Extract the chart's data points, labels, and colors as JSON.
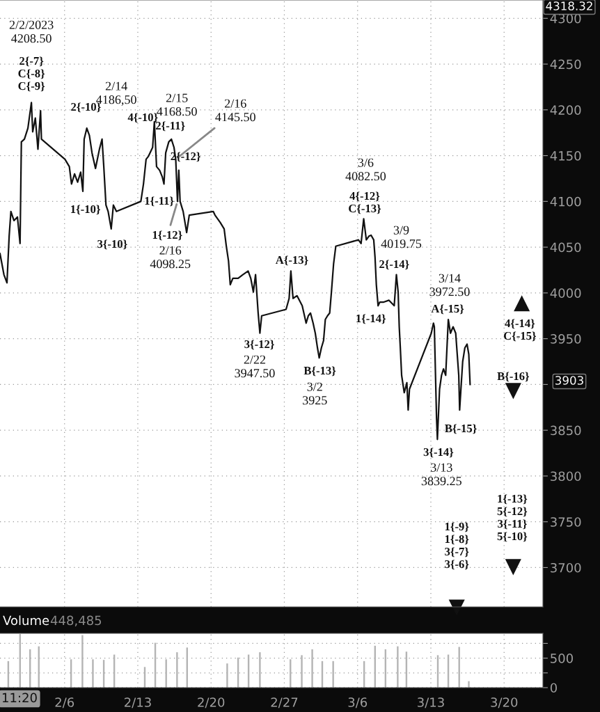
{
  "chart_data": [
    {
      "type": "line",
      "xlim": [
        "2023-01-30T20:00",
        "2023-03-23T17:00"
      ],
      "ylim": [
        3657,
        4320
      ],
      "xticks": [
        {
          "value": "2023-02-06",
          "label": null
        },
        {
          "value": "2023-02-13",
          "label": null
        },
        {
          "value": "2023-02-20",
          "label": null
        },
        {
          "value": "2023-02-27",
          "label": null
        },
        {
          "value": "2023-03-06",
          "label": null
        },
        {
          "value": "2023-03-13",
          "label": null
        },
        {
          "value": "2023-03-20",
          "label": null
        }
      ],
      "yticks": [
        3700,
        3750,
        3800,
        3850,
        {
          "value": 3900,
          "label": null
        },
        3950,
        4000,
        4050,
        4100,
        4150,
        4200,
        4250,
        4300
      ],
      "tick_labels": "y",
      "grid": true,
      "marker": "none",
      "line_style": "solid",
      "series": [
        {
          "color": "#111111",
          "x": [
            "2023-01-30T20:00",
            "2023-01-31T05:00",
            "2023-01-31T12:00",
            "2023-01-31T17:00",
            "2023-01-31T21:00",
            "2023-02-01T04:00",
            "2023-02-01T12:00",
            "2023-02-01T18:00",
            "2023-02-01T21:00",
            "2023-02-02T04:00",
            "2023-02-02T12:00",
            "2023-02-02T20:00",
            "2023-02-02T23:00",
            "2023-02-03T05:00",
            "2023-02-03T11:00",
            "2023-02-03T17:00",
            "2023-02-03T19:00",
            "2023-02-06T01:00",
            "2023-02-06T11:00",
            "2023-02-06T16:00",
            "2023-02-06T23:00",
            "2023-02-07T06:00",
            "2023-02-07T13:00",
            "2023-02-07T18:00",
            "2023-02-07T21:00",
            "2023-02-08T03:00",
            "2023-02-08T09:00",
            "2023-02-08T15:00",
            "2023-02-08T23:00",
            "2023-02-09T08:00",
            "2023-02-09T14:00",
            "2023-02-09T18:00",
            "2023-02-09T23:00",
            "2023-02-10T04:00",
            "2023-02-10T11:00",
            "2023-02-10T16:00",
            "2023-02-10T23:00",
            "2023-02-13T07:00",
            "2023-02-13T13:00",
            "2023-02-13T19:00",
            "2023-02-14T00:00",
            "2023-02-14T10:00",
            "2023-02-14T14:00",
            "2023-02-14T19:00",
            "2023-02-15T02:00",
            "2023-02-15T08:00",
            "2023-02-15T12:00",
            "2023-02-15T16:00",
            "2023-02-15T23:00",
            "2023-02-16T05:00",
            "2023-02-16T11:00",
            "2023-02-16T15:00",
            "2023-02-16T19:00",
            "2023-02-16T22:00",
            "2023-02-17T01:00",
            "2023-02-17T08:00",
            "2023-02-17T16:00",
            "2023-02-17T22:00",
            "2023-02-20T05:00",
            "2023-02-20T09:00",
            "2023-02-20T21:00",
            "2023-02-21T06:00",
            "2023-02-21T11:00",
            "2023-02-21T16:00",
            "2023-02-21T20:00",
            "2023-02-22T02:00",
            "2023-02-22T14:00",
            "2023-02-23T01:00",
            "2023-02-23T13:00",
            "2023-02-23T19:00",
            "2023-02-24T01:00",
            "2023-02-24T06:00",
            "2023-02-24T12:00",
            "2023-02-24T16:00",
            "2023-02-24T20:00",
            "2023-02-27T04:00",
            "2023-02-27T11:00",
            "2023-02-27T15:00",
            "2023-02-27T20:00",
            "2023-02-28T05:00",
            "2023-02-28T17:00",
            "2023-03-01T02:00",
            "2023-03-01T07:00",
            "2023-03-01T12:00",
            "2023-03-01T18:00",
            "2023-03-01T23:00",
            "2023-03-02T04:00",
            "2023-03-02T08:00",
            "2023-03-02T13:00",
            "2023-03-02T18:00",
            "2023-03-02T22:00",
            "2023-03-03T03:00",
            "2023-03-03T08:00",
            "2023-03-03T12:00",
            "2023-03-03T17:00",
            "2023-03-03T22:00",
            "2023-03-06T02:00",
            "2023-03-06T08:00",
            "2023-03-06T14:00",
            "2023-03-06T20:00",
            "2023-03-07T02:00",
            "2023-03-07T07:00",
            "2023-03-07T13:00",
            "2023-03-07T16:00",
            "2023-03-07T19:00",
            "2023-03-07T23:00",
            "2023-03-08T03:00",
            "2023-03-08T12:00",
            "2023-03-09T00:00",
            "2023-03-09T12:00",
            "2023-03-09T17:00",
            "2023-03-09T21:00",
            "2023-03-09T23:30",
            "2023-03-10T02:00",
            "2023-03-10T05:00",
            "2023-03-10T11:00",
            "2023-03-10T17:00",
            "2023-03-10T20:00",
            "2023-03-10T23:00",
            "2023-03-13T01:00",
            "2023-03-13T06:00",
            "2023-03-13T08:00",
            "2023-03-13T13:00",
            "2023-03-13T15:00",
            "2023-03-13T20:00",
            "2023-03-14T00:30",
            "2023-03-14T05:00",
            "2023-03-14T10:00",
            "2023-03-14T16:00",
            "2023-03-14T21:00",
            "2023-03-15T03:00",
            "2023-03-15T09:00",
            "2023-03-15T16:00",
            "2023-03-15T18:00",
            "2023-03-15T21:00",
            "2023-03-16T01:00",
            "2023-03-16T06:00",
            "2023-03-16T11:00",
            "2023-03-16T15:00",
            "2023-03-16T18:00"
          ],
          "values": [
            4043,
            4020,
            4011,
            4062,
            4089,
            4079,
            4083,
            4054,
            4165,
            4168,
            4180,
            4208,
            4176,
            4191,
            4157,
            4199,
            4168,
            4146,
            4138,
            4119,
            4130,
            4121,
            4132,
            4111,
            4168,
            4180,
            4172,
            4153,
            4136,
            4157,
            4168,
            4138,
            4096,
            4089,
            4070,
            4096,
            4089,
            4100,
            4119,
            4146,
            4149,
            4159,
            4187,
            4138,
            4134,
            4127,
            4119,
            4153,
            4165,
            4168,
            4159,
            4146,
            4100,
            4134,
            4100,
            4089,
            4066,
            4085,
            4089,
            4085,
            4077,
            4070,
            4051,
            4035,
            4009,
            4016,
            4016,
            4020,
            4024,
            4016,
            4001,
            4020,
            3978,
            3956,
            3975,
            3982,
            3994,
            4024,
            3994,
            3997,
            3986,
            3967,
            3975,
            3978,
            3967,
            3956,
            3940,
            3929,
            3940,
            3948,
            3971,
            3975,
            3978,
            4001,
            4032,
            4051,
            4058,
            4054,
            4081,
            4058,
            4062,
            4063,
            4058,
            4039,
            4009,
            3986,
            3990,
            3990,
            3992,
            3986,
            4020,
            4001,
            3963,
            3940,
            3910,
            3891,
            3902,
            3872,
            3895,
            3956,
            3967,
            3963,
            3864,
            3840,
            3895,
            3910,
            3917,
            3910,
            3971,
            3956,
            3963,
            3956,
            3910,
            3872,
            3895,
            3925,
            3940,
            3944,
            3933,
            3900
          ]
        }
      ],
      "annotations": [
        "2/2/2023\n4208.50",
        "2{-7}\nC{-8}\nC{-9}",
        "2{-10}",
        "1{-10}",
        "2/14\n4186,50",
        "4{-10}",
        "2/15\n4168.50",
        "2{-11}",
        {
          "text": "2/16\n4145.50",
          "x": "2023-02-16T15:00",
          "y": 4146
        },
        "2{-12}",
        "1{-11}",
        "3{-10}",
        {
          "text": "1{-12}",
          "x": "2023-02-16T19:00",
          "y": 4100
        },
        "2/16\n4098.25",
        "A{-13}",
        "3{-12}",
        "2/22\n3947.50",
        "B{-13}",
        "3/2\n3925",
        "3/6\n4082.50",
        "4{-12}\nC{-13}",
        "3/9\n4019.75",
        "2{-14}",
        "1{-14}",
        "3/14\n3972.50",
        "A{-15}",
        "3{-14}",
        "3/13\n3839.25",
        "B{-15}",
        "4{-14}\nC{-15}",
        "B{-16}",
        "1{-9}\n1{-8}\n3{-7}\n3{-6}",
        "1{-13}\n5{-12}\n3{-11}\n5{-10}",
        "4318.32",
        "3903"
      ]
    },
    {
      "type": "bar",
      "title": "Volume",
      "subtitle": "448,485",
      "color": "#b4b4b4",
      "xlim": [
        "2023-01-30T20:00",
        "2023-03-23T17:00"
      ],
      "ylim": [
        0,
        920
      ],
      "xticks": [
        {
          "value": "2023-02-06",
          "label": "2/6"
        },
        {
          "value": "2023-02-13",
          "label": "2/13"
        },
        {
          "value": "2023-02-20",
          "label": "2/20"
        },
        {
          "value": "2023-02-27",
          "label": "2/27"
        },
        {
          "value": "2023-03-06",
          "label": "3/6"
        },
        {
          "value": "2023-03-13",
          "label": "3/13"
        },
        {
          "value": "2023-03-20",
          "label": "3/20"
        }
      ],
      "yticks": [
        0,
        {
          "value": 250,
          "label": null
        },
        500,
        {
          "value": 750,
          "label": null
        }
      ],
      "grid": true,
      "x": [
        "2023-01-31T15:00",
        "2023-02-01T18:00",
        "2023-02-02T17:00",
        "2023-02-03T13:00",
        "2023-02-06T15:00",
        "2023-02-07T17:00",
        "2023-02-08T17:00",
        "2023-02-09T18:00",
        "2023-02-10T18:00",
        "2023-02-13T16:00",
        "2023-02-14T16:00",
        "2023-02-15T17:00",
        "2023-02-16T18:00",
        "2023-02-17T17:00",
        "2023-02-21T13:00",
        "2023-02-22T14:00",
        "2023-02-23T14:00",
        "2023-02-24T16:00",
        "2023-02-27T14:00",
        "2023-02-28T16:00",
        "2023-03-01T16:00",
        "2023-03-02T15:00",
        "2023-03-03T16:00",
        "2023-03-06T15:00",
        "2023-03-07T16:00",
        "2023-03-08T16:00",
        "2023-03-09T20:00",
        "2023-03-10T16:00",
        "2023-03-13T16:00",
        "2023-03-14T16:00",
        "2023-03-15T17:00",
        "2023-03-16T15:00"
      ],
      "values": [
        450,
        910,
        650,
        700,
        480,
        890,
        480,
        470,
        560,
        350,
        760,
        480,
        600,
        680,
        410,
        510,
        560,
        600,
        480,
        550,
        650,
        450,
        450,
        450,
        710,
        650,
        700,
        610,
        550,
        560,
        690,
        110
      ],
      "annotations": [
        "11:20"
      ]
    }
  ]
}
